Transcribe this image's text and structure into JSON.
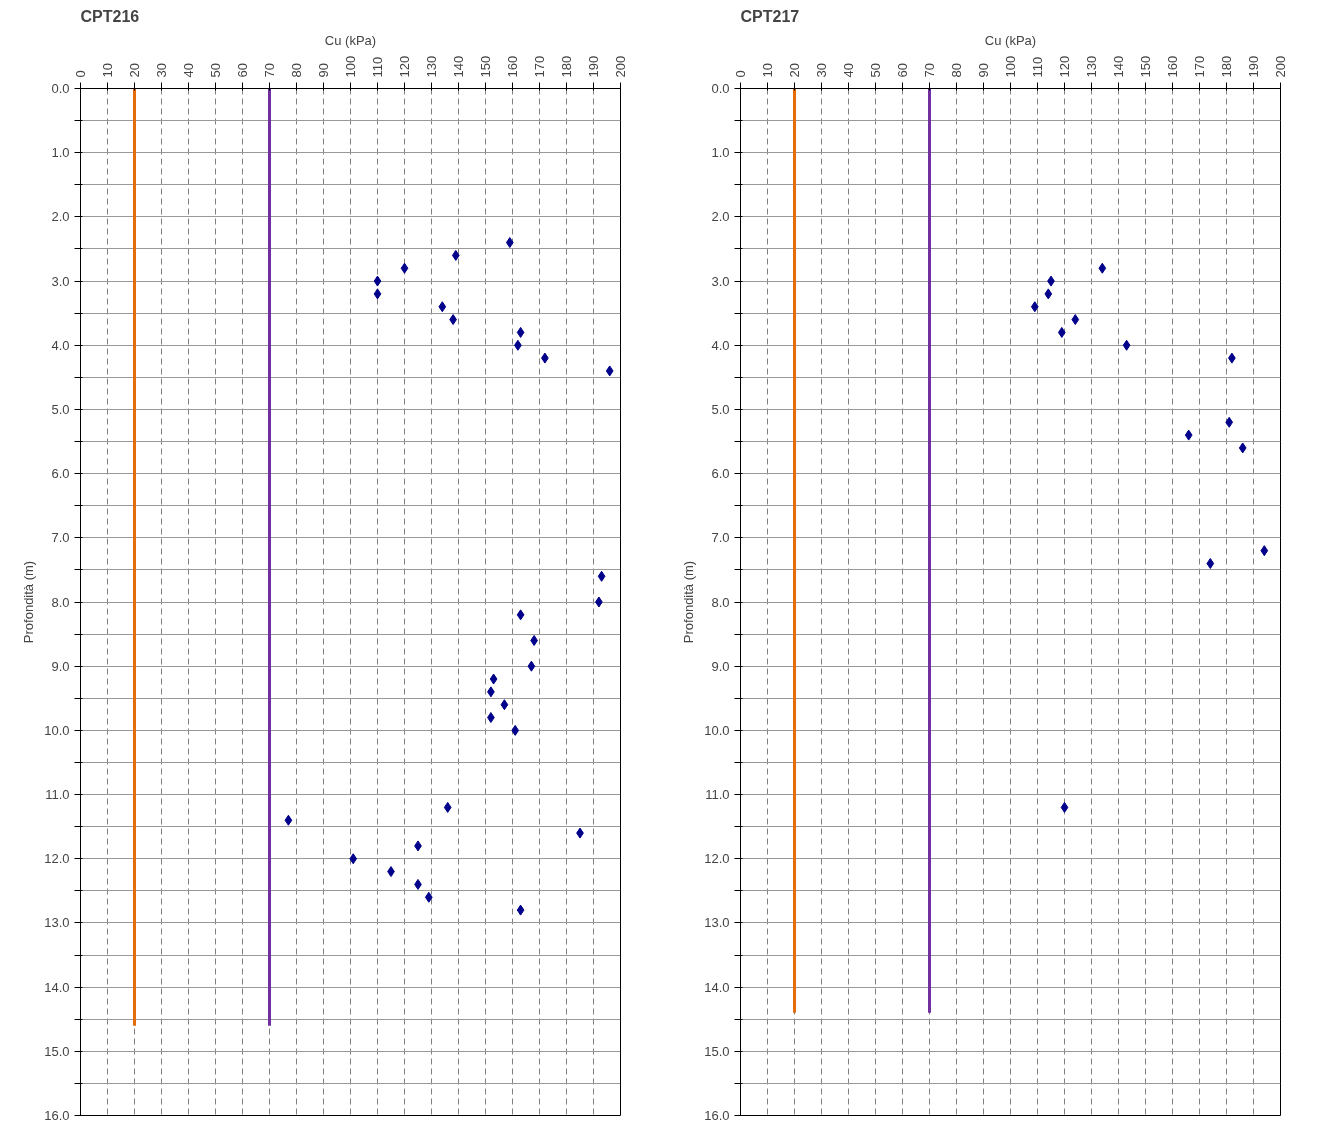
{
  "chart_data": [
    {
      "type": "scatter",
      "title": "CPT216",
      "xlabel": "Cu (kPa)",
      "ylabel": "Profondità (m)",
      "xlim": [
        0,
        200
      ],
      "xticks": [
        0,
        10,
        20,
        30,
        40,
        50,
        60,
        70,
        80,
        90,
        100,
        110,
        120,
        130,
        140,
        150,
        160,
        170,
        180,
        190,
        200
      ],
      "ylim": [
        16,
        0
      ],
      "yticks": [
        {
          "value": 0,
          "label": "0.0"
        },
        {
          "value": 0.5,
          "label": null
        },
        {
          "value": 1,
          "label": "1.0"
        },
        {
          "value": 1.5,
          "label": null
        },
        {
          "value": 2,
          "label": "2.0"
        },
        {
          "value": 2.5,
          "label": null
        },
        {
          "value": 3,
          "label": "3.0"
        },
        {
          "value": 3.5,
          "label": null
        },
        {
          "value": 4,
          "label": "4.0"
        },
        {
          "value": 4.5,
          "label": null
        },
        {
          "value": 5,
          "label": "5.0"
        },
        {
          "value": 5.5,
          "label": null
        },
        {
          "value": 6,
          "label": "6.0"
        },
        {
          "value": 6.5,
          "label": null
        },
        {
          "value": 7,
          "label": "7.0"
        },
        {
          "value": 7.5,
          "label": null
        },
        {
          "value": 8,
          "label": "8.0"
        },
        {
          "value": 8.5,
          "label": null
        },
        {
          "value": 9,
          "label": "9.0"
        },
        {
          "value": 9.5,
          "label": null
        },
        {
          "value": 10,
          "label": "10.0"
        },
        {
          "value": 10.5,
          "label": null
        },
        {
          "value": 11,
          "label": "11.0"
        },
        {
          "value": 11.5,
          "label": null
        },
        {
          "value": 12,
          "label": "12.0"
        },
        {
          "value": 12.5,
          "label": null
        },
        {
          "value": 13,
          "label": "13.0"
        },
        {
          "value": 13.5,
          "label": null
        },
        {
          "value": 14,
          "label": "14.0"
        },
        {
          "value": 14.5,
          "label": null
        },
        {
          "value": 15,
          "label": "15.0"
        },
        {
          "value": 15.5,
          "label": null
        },
        {
          "value": 16,
          "label": "16.0"
        }
      ],
      "grid": true,
      "series": [
        {
          "marker": "diamond",
          "color": "#00008b",
          "x": [
            159,
            139,
            120,
            110,
            110,
            134,
            138,
            163,
            162,
            172,
            196,
            193,
            192,
            163,
            168,
            167,
            153,
            152,
            157,
            152,
            161,
            136,
            77,
            185,
            125,
            101,
            115,
            125,
            129,
            163
          ],
          "values": [
            2.4,
            2.6,
            2.8,
            3.0,
            3.2,
            3.4,
            3.6,
            3.8,
            4.0,
            4.2,
            4.4,
            7.6,
            8.0,
            8.2,
            8.6,
            9.0,
            9.2,
            9.4,
            9.6,
            9.8,
            10.0,
            11.2,
            11.4,
            11.6,
            11.8,
            12.0,
            12.2,
            12.4,
            12.6,
            12.8
          ]
        },
        {
          "type": "line",
          "color": "#e46c0a",
          "x": [
            20,
            20
          ],
          "values": [
            0,
            14.6
          ]
        },
        {
          "type": "line",
          "color": "#7030a0",
          "x": [
            70,
            70
          ],
          "values": [
            0,
            14.6
          ]
        }
      ]
    },
    {
      "type": "scatter",
      "title": "CPT217",
      "xlabel": "Cu (kPa)",
      "ylabel": "Profondità (m)",
      "xlim": [
        0,
        200
      ],
      "xticks": [
        0,
        10,
        20,
        30,
        40,
        50,
        60,
        70,
        80,
        90,
        100,
        110,
        120,
        130,
        140,
        150,
        160,
        170,
        180,
        190,
        200
      ],
      "ylim": [
        16,
        0
      ],
      "yticks": [
        {
          "value": 0,
          "label": "0.0"
        },
        {
          "value": 0.5,
          "label": null
        },
        {
          "value": 1,
          "label": "1.0"
        },
        {
          "value": 1.5,
          "label": null
        },
        {
          "value": 2,
          "label": "2.0"
        },
        {
          "value": 2.5,
          "label": null
        },
        {
          "value": 3,
          "label": "3.0"
        },
        {
          "value": 3.5,
          "label": null
        },
        {
          "value": 4,
          "label": "4.0"
        },
        {
          "value": 4.5,
          "label": null
        },
        {
          "value": 5,
          "label": "5.0"
        },
        {
          "value": 5.5,
          "label": null
        },
        {
          "value": 6,
          "label": "6.0"
        },
        {
          "value": 6.5,
          "label": null
        },
        {
          "value": 7,
          "label": "7.0"
        },
        {
          "value": 7.5,
          "label": null
        },
        {
          "value": 8,
          "label": "8.0"
        },
        {
          "value": 8.5,
          "label": null
        },
        {
          "value": 9,
          "label": "9.0"
        },
        {
          "value": 9.5,
          "label": null
        },
        {
          "value": 10,
          "label": "10.0"
        },
        {
          "value": 10.5,
          "label": null
        },
        {
          "value": 11,
          "label": "11.0"
        },
        {
          "value": 11.5,
          "label": null
        },
        {
          "value": 12,
          "label": "12.0"
        },
        {
          "value": 12.5,
          "label": null
        },
        {
          "value": 13,
          "label": "13.0"
        },
        {
          "value": 13.5,
          "label": null
        },
        {
          "value": 14,
          "label": "14.0"
        },
        {
          "value": 14.5,
          "label": null
        },
        {
          "value": 15,
          "label": "15.0"
        },
        {
          "value": 15.5,
          "label": null
        },
        {
          "value": 16,
          "label": "16.0"
        }
      ],
      "grid": true,
      "series": [
        {
          "marker": "diamond",
          "color": "#00008b",
          "x": [
            134,
            115,
            114,
            109,
            124,
            119,
            143,
            182,
            181,
            166,
            186,
            194,
            174,
            120
          ],
          "values": [
            2.8,
            3.0,
            3.2,
            3.4,
            3.6,
            3.8,
            4.0,
            4.2,
            5.2,
            5.4,
            5.6,
            7.2,
            7.4,
            11.2
          ]
        },
        {
          "type": "line",
          "color": "#e46c0a",
          "x": [
            20,
            20
          ],
          "values": [
            0,
            14.4
          ]
        },
        {
          "type": "line",
          "color": "#7030a0",
          "x": [
            70,
            70
          ],
          "values": [
            0,
            14.4
          ]
        }
      ]
    }
  ]
}
